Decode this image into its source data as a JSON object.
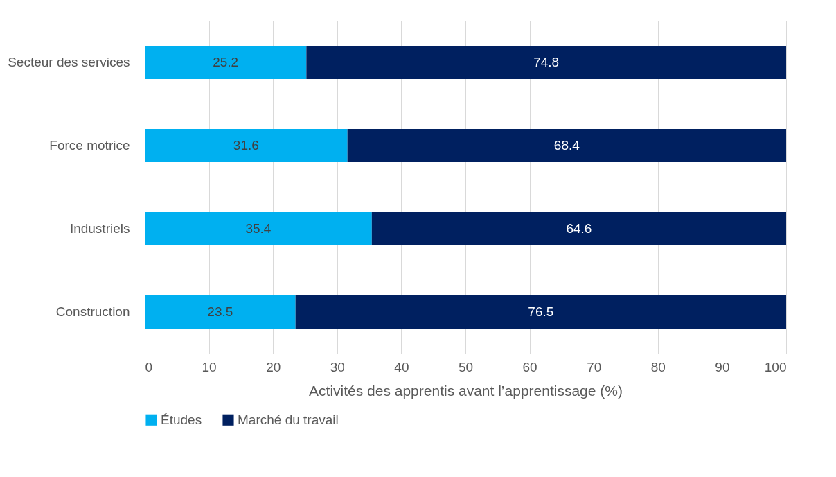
{
  "chart_data": {
    "type": "bar",
    "orientation": "horizontal",
    "stacked": true,
    "categories": [
      "Secteur des services",
      "Force motrice",
      "Industriels",
      "Construction"
    ],
    "series": [
      {
        "name": "Études",
        "color": "#00b0f0",
        "values": [
          25.2,
          31.6,
          35.4,
          23.5
        ]
      },
      {
        "name": "Marché du travail",
        "color": "#002060",
        "values": [
          74.8,
          68.4,
          64.6,
          76.5
        ]
      }
    ],
    "xlabel": "Activités des apprentis avant l’apprentissage (%)",
    "xlim": [
      0,
      100
    ],
    "xticks": [
      0,
      10,
      20,
      30,
      40,
      50,
      60,
      70,
      80,
      90,
      100
    ],
    "grid": "x",
    "legend": "bottom",
    "data_labels": true
  }
}
